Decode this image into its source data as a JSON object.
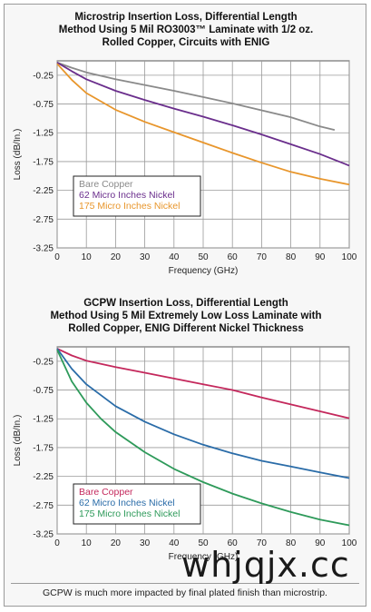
{
  "chart_data": [
    {
      "type": "line",
      "title": [
        "Microstrip Insertion Loss, Differential Length",
        "Method Using 5 Mil RO3003™ Laminate with 1/2 oz.",
        "Rolled Copper, Circuits with ENIG"
      ],
      "xlabel": "Frequency (GHz)",
      "ylabel": "Loss (dB/In.)",
      "xlim": [
        0,
        100
      ],
      "ylim": [
        -3.25,
        0
      ],
      "xticks": [
        0,
        10,
        20,
        30,
        40,
        50,
        60,
        70,
        80,
        90,
        100
      ],
      "yticks": [
        -0.25,
        -0.75,
        -1.25,
        -1.75,
        -2.25,
        -2.75,
        -3.25
      ],
      "grid": true,
      "legend_position": "lower-left",
      "series": [
        {
          "name": "Bare Copper",
          "color": "#8a8a8a",
          "x": [
            0,
            5,
            10,
            20,
            30,
            40,
            50,
            60,
            70,
            80,
            90,
            95
          ],
          "y": [
            -0.03,
            -0.12,
            -0.2,
            -0.32,
            -0.42,
            -0.52,
            -0.63,
            -0.74,
            -0.86,
            -0.98,
            -1.14,
            -1.2
          ]
        },
        {
          "name": "62 Micro Inches Nickel",
          "color": "#6a2e8c",
          "x": [
            0,
            5,
            10,
            20,
            30,
            40,
            50,
            60,
            70,
            80,
            90,
            100
          ],
          "y": [
            -0.03,
            -0.18,
            -0.32,
            -0.52,
            -0.68,
            -0.83,
            -0.97,
            -1.12,
            -1.28,
            -1.45,
            -1.62,
            -1.82
          ]
        },
        {
          "name": "175 Micro Inches Nickel",
          "color": "#e8962c",
          "x": [
            0,
            5,
            10,
            20,
            30,
            40,
            50,
            60,
            70,
            80,
            90,
            100
          ],
          "y": [
            -0.05,
            -0.33,
            -0.56,
            -0.85,
            -1.06,
            -1.24,
            -1.42,
            -1.6,
            -1.77,
            -1.93,
            -2.05,
            -2.15
          ]
        }
      ]
    },
    {
      "type": "line",
      "title": [
        "GCPW Insertion Loss, Differential Length",
        "Method Using 5 Mil Extremely Low Loss Laminate with",
        "Rolled Copper, ENIG Different Nickel Thickness"
      ],
      "xlabel": "Frequency (GHz)",
      "ylabel": "Loss (dB/In.)",
      "xlim": [
        0,
        100
      ],
      "ylim": [
        -3.25,
        0
      ],
      "xticks": [
        0,
        10,
        20,
        30,
        40,
        50,
        60,
        70,
        80,
        90,
        100
      ],
      "yticks": [
        -0.25,
        -0.75,
        -1.25,
        -1.75,
        -2.25,
        -2.75,
        -3.25
      ],
      "grid": true,
      "legend_position": "lower-left",
      "series": [
        {
          "name": "Bare Copper",
          "color": "#c4285c",
          "x": [
            0,
            5,
            10,
            20,
            30,
            40,
            50,
            60,
            70,
            80,
            90,
            100
          ],
          "y": [
            -0.03,
            -0.15,
            -0.24,
            -0.35,
            -0.45,
            -0.55,
            -0.65,
            -0.75,
            -0.88,
            -1.0,
            -1.12,
            -1.24
          ]
        },
        {
          "name": "62 Micro Inches Nickel",
          "color": "#2a6ca8",
          "x": [
            0,
            5,
            10,
            20,
            30,
            40,
            50,
            60,
            70,
            80,
            90,
            100
          ],
          "y": [
            -0.03,
            -0.38,
            -0.65,
            -1.03,
            -1.3,
            -1.52,
            -1.7,
            -1.85,
            -1.98,
            -2.08,
            -2.18,
            -2.28
          ]
        },
        {
          "name": "175 Micro Inches Nickel",
          "color": "#2e9a5a",
          "x": [
            0,
            5,
            10,
            15,
            20,
            30,
            40,
            50,
            60,
            70,
            80,
            90,
            100
          ],
          "y": [
            -0.05,
            -0.6,
            -0.97,
            -1.25,
            -1.48,
            -1.83,
            -2.12,
            -2.35,
            -2.55,
            -2.72,
            -2.87,
            -3.0,
            -3.1
          ]
        }
      ]
    }
  ],
  "caption": "GCPW is much more impacted by final plated finish than microstrip.",
  "watermark": "whjqjx.cc"
}
